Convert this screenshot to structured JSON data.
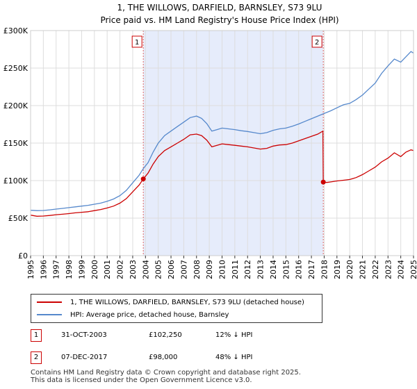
{
  "chart_data": {
    "type": "line",
    "title": "1, THE WILLOWS, DARFIELD, BARNSLEY, S73 9LU",
    "subtitle": "Price paid vs. HM Land Registry's House Price Index (HPI)",
    "xlim": [
      1995,
      2025
    ],
    "ylim": [
      0,
      300000
    ],
    "yticks": [
      {
        "value": 0,
        "label": "£0"
      },
      {
        "value": 50000,
        "label": "£50K"
      },
      {
        "value": 100000,
        "label": "£100K"
      },
      {
        "value": 150000,
        "label": "£150K"
      },
      {
        "value": 200000,
        "label": "£200K"
      },
      {
        "value": 250000,
        "label": "£250K"
      },
      {
        "value": 300000,
        "label": "£300K"
      }
    ],
    "xticks": [
      "1995",
      "1996",
      "1997",
      "1998",
      "1999",
      "2000",
      "2001",
      "2002",
      "2003",
      "2004",
      "2005",
      "2006",
      "2007",
      "2008",
      "2009",
      "2010",
      "2011",
      "2012",
      "2013",
      "2014",
      "2015",
      "2016",
      "2017",
      "2018",
      "2019",
      "2020",
      "2021",
      "2022",
      "2023",
      "2024",
      "2025"
    ],
    "shaded_range": [
      2003.83,
      2017.93
    ],
    "series": [
      {
        "name": "1, THE WILLOWS, DARFIELD, BARNSLEY, S73 9LU (detached house)",
        "color": "#cc0000",
        "points": [
          [
            1995,
            54000
          ],
          [
            1995.5,
            52500
          ],
          [
            1996,
            52800
          ],
          [
            1996.5,
            53500
          ],
          [
            1997,
            54500
          ],
          [
            1997.5,
            55200
          ],
          [
            1998,
            56000
          ],
          [
            1998.5,
            57000
          ],
          [
            1999,
            57800
          ],
          [
            1999.5,
            58500
          ],
          [
            2000,
            60000
          ],
          [
            2000.5,
            61500
          ],
          [
            2001,
            63500
          ],
          [
            2001.5,
            66000
          ],
          [
            2002,
            70000
          ],
          [
            2002.5,
            76000
          ],
          [
            2003,
            85000
          ],
          [
            2003.5,
            94000
          ],
          [
            2003.83,
            102250
          ],
          [
            2004.2,
            110000
          ],
          [
            2004.6,
            122000
          ],
          [
            2005,
            132000
          ],
          [
            2005.5,
            140000
          ],
          [
            2006,
            145000
          ],
          [
            2006.5,
            150000
          ],
          [
            2007,
            155000
          ],
          [
            2007.5,
            161000
          ],
          [
            2008,
            162000
          ],
          [
            2008.4,
            160000
          ],
          [
            2008.8,
            154000
          ],
          [
            2009.2,
            145000
          ],
          [
            2009.6,
            147000
          ],
          [
            2010,
            149000
          ],
          [
            2010.5,
            148000
          ],
          [
            2011,
            147000
          ],
          [
            2011.5,
            146000
          ],
          [
            2012,
            145000
          ],
          [
            2012.5,
            143500
          ],
          [
            2013,
            142000
          ],
          [
            2013.5,
            143000
          ],
          [
            2014,
            146000
          ],
          [
            2014.5,
            147500
          ],
          [
            2015,
            148000
          ],
          [
            2015.5,
            150000
          ],
          [
            2016,
            153000
          ],
          [
            2016.5,
            156000
          ],
          [
            2017,
            159000
          ],
          [
            2017.5,
            162000
          ],
          [
            2017.9,
            166000
          ],
          [
            2017.93,
            98000
          ],
          [
            2018.2,
            97500
          ],
          [
            2018.6,
            98500
          ],
          [
            2019,
            99500
          ],
          [
            2019.5,
            100500
          ],
          [
            2020,
            101500
          ],
          [
            2020.5,
            104000
          ],
          [
            2021,
            108000
          ],
          [
            2021.5,
            113000
          ],
          [
            2022,
            118000
          ],
          [
            2022.5,
            125000
          ],
          [
            2023,
            130000
          ],
          [
            2023.5,
            137000
          ],
          [
            2024,
            132000
          ],
          [
            2024.4,
            138000
          ],
          [
            2024.8,
            141000
          ],
          [
            2025,
            140000
          ]
        ]
      },
      {
        "name": "HPI: Average price, detached house, Barnsley",
        "color": "#5588cc",
        "points": [
          [
            1995,
            60500
          ],
          [
            1995.5,
            60000
          ],
          [
            1996,
            60200
          ],
          [
            1996.5,
            61000
          ],
          [
            1997,
            62000
          ],
          [
            1997.5,
            63000
          ],
          [
            1998,
            64000
          ],
          [
            1998.5,
            65000
          ],
          [
            1999,
            66000
          ],
          [
            1999.5,
            67000
          ],
          [
            2000,
            68500
          ],
          [
            2000.5,
            70000
          ],
          [
            2001,
            72500
          ],
          [
            2001.5,
            75500
          ],
          [
            2002,
            80000
          ],
          [
            2002.5,
            87000
          ],
          [
            2003,
            97000
          ],
          [
            2003.5,
            107000
          ],
          [
            2003.83,
            116000
          ],
          [
            2004.2,
            124000
          ],
          [
            2004.6,
            138000
          ],
          [
            2005,
            150000
          ],
          [
            2005.5,
            160000
          ],
          [
            2006,
            166000
          ],
          [
            2006.5,
            172000
          ],
          [
            2007,
            178000
          ],
          [
            2007.5,
            184000
          ],
          [
            2008,
            186000
          ],
          [
            2008.4,
            183000
          ],
          [
            2008.8,
            176000
          ],
          [
            2009.2,
            166000
          ],
          [
            2009.6,
            168000
          ],
          [
            2010,
            170000
          ],
          [
            2010.5,
            169000
          ],
          [
            2011,
            168000
          ],
          [
            2011.5,
            166500
          ],
          [
            2012,
            165500
          ],
          [
            2012.5,
            164000
          ],
          [
            2013,
            162500
          ],
          [
            2013.5,
            164000
          ],
          [
            2014,
            167000
          ],
          [
            2014.5,
            169000
          ],
          [
            2015,
            170000
          ],
          [
            2015.5,
            172500
          ],
          [
            2016,
            175500
          ],
          [
            2016.5,
            179000
          ],
          [
            2017,
            182500
          ],
          [
            2017.5,
            186000
          ],
          [
            2017.93,
            189000
          ],
          [
            2018.5,
            193000
          ],
          [
            2019,
            197000
          ],
          [
            2019.5,
            201000
          ],
          [
            2020,
            203000
          ],
          [
            2020.5,
            208000
          ],
          [
            2021,
            214000
          ],
          [
            2021.5,
            222000
          ],
          [
            2022,
            230000
          ],
          [
            2022.5,
            243000
          ],
          [
            2023,
            253000
          ],
          [
            2023.5,
            262000
          ],
          [
            2024,
            258000
          ],
          [
            2024.4,
            265000
          ],
          [
            2024.8,
            272000
          ],
          [
            2025,
            270000
          ]
        ]
      }
    ],
    "annotations": [
      {
        "label": "1",
        "x": 2003.83
      },
      {
        "label": "2",
        "x": 2017.93
      }
    ],
    "sale_points": [
      {
        "x": 2003.83,
        "y": 102250
      },
      {
        "x": 2017.93,
        "y": 98000
      }
    ]
  },
  "legend": {
    "entries": [
      "1, THE WILLOWS, DARFIELD, BARNSLEY, S73 9LU (detached house)",
      "HPI: Average price, detached house, Barnsley"
    ]
  },
  "sales": [
    {
      "num": "1",
      "date": "31-OCT-2003",
      "price": "£102,250",
      "hpi": "12% ↓ HPI"
    },
    {
      "num": "2",
      "date": "07-DEC-2017",
      "price": "£98,000",
      "hpi": "48% ↓ HPI"
    }
  ],
  "footer": {
    "line1": "Contains HM Land Registry data © Crown copyright and database right 2025.",
    "line2": "This data is licensed under the Open Government Licence v3.0."
  },
  "colors": {
    "property": "#cc0000",
    "hpi": "#5588cc",
    "shade": "#e6ecfb"
  }
}
